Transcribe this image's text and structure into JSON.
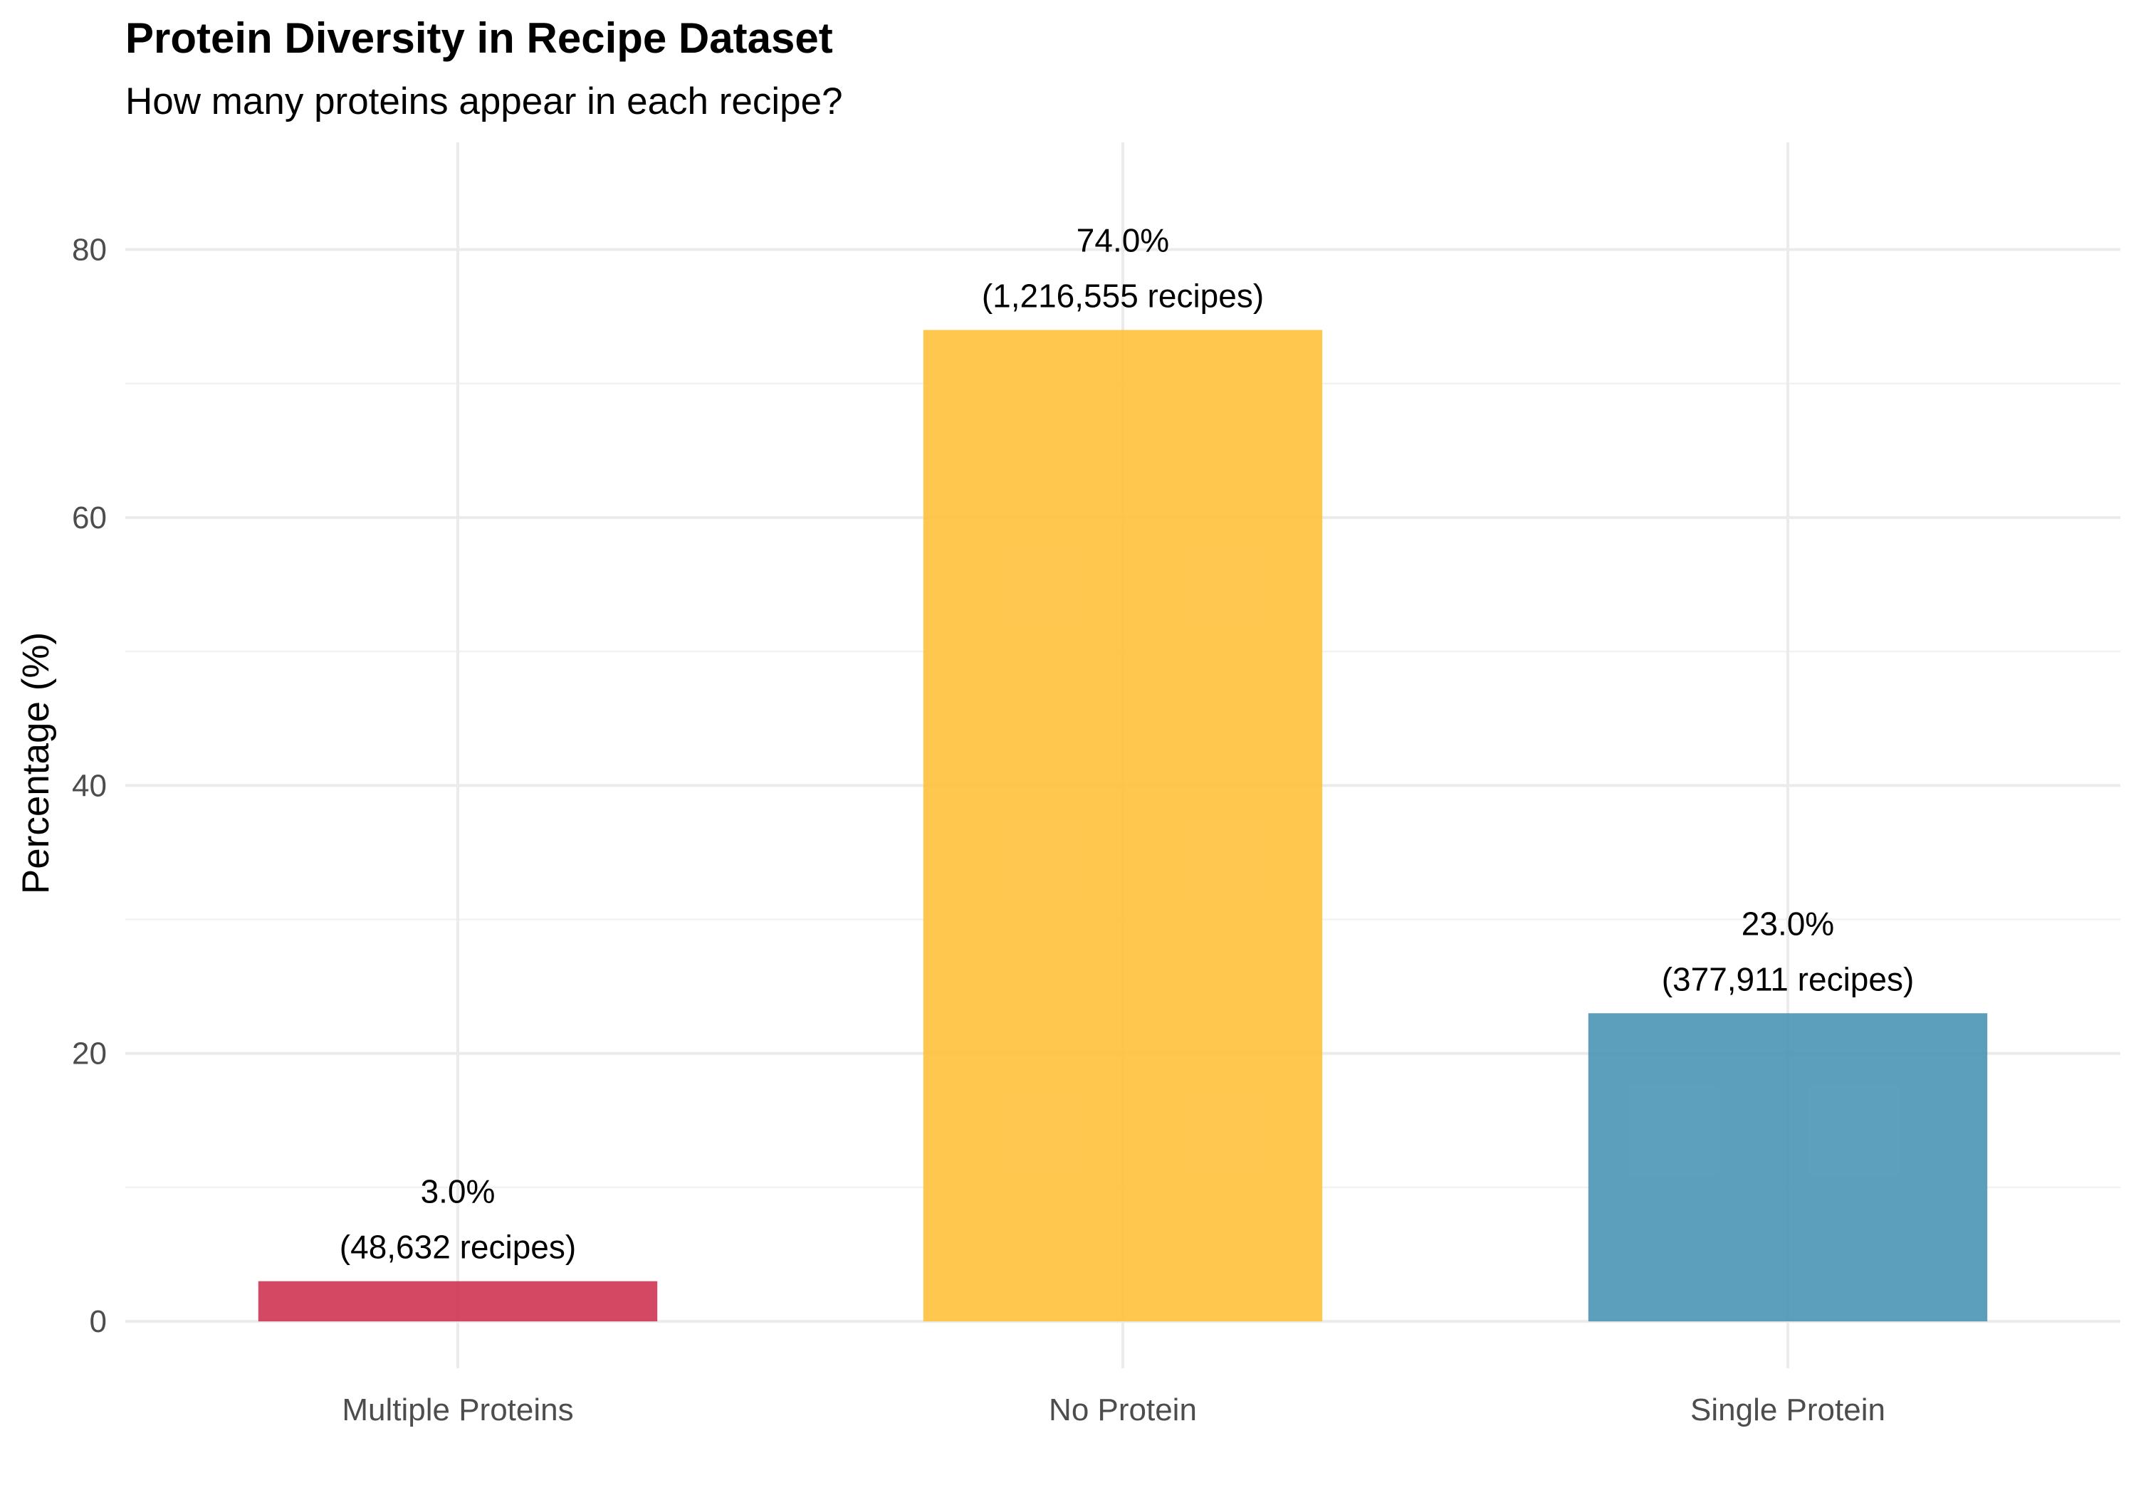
{
  "chart_data": {
    "type": "bar",
    "title": "Protein Diversity in Recipe Dataset",
    "subtitle": "How many proteins appear in each recipe?",
    "xlabel": "",
    "ylabel": "Percentage (%)",
    "ylim": [
      -3.5,
      88
    ],
    "yticks": [
      0,
      20,
      40,
      60,
      80
    ],
    "categories": [
      "Multiple Proteins",
      "No Protein",
      "Single Protein"
    ],
    "values": [
      3.0,
      74.0,
      23.0
    ],
    "data_labels": [
      [
        "3.0%",
        "(48,632 recipes)"
      ],
      [
        "74.0%",
        "(1,216,555 recipes)"
      ],
      [
        "23.0%",
        "(377,911 recipes)"
      ]
    ],
    "colors": [
      "#CE3553",
      "#FFC13B",
      "#4A95B6"
    ],
    "grid": true,
    "legend": "none"
  }
}
